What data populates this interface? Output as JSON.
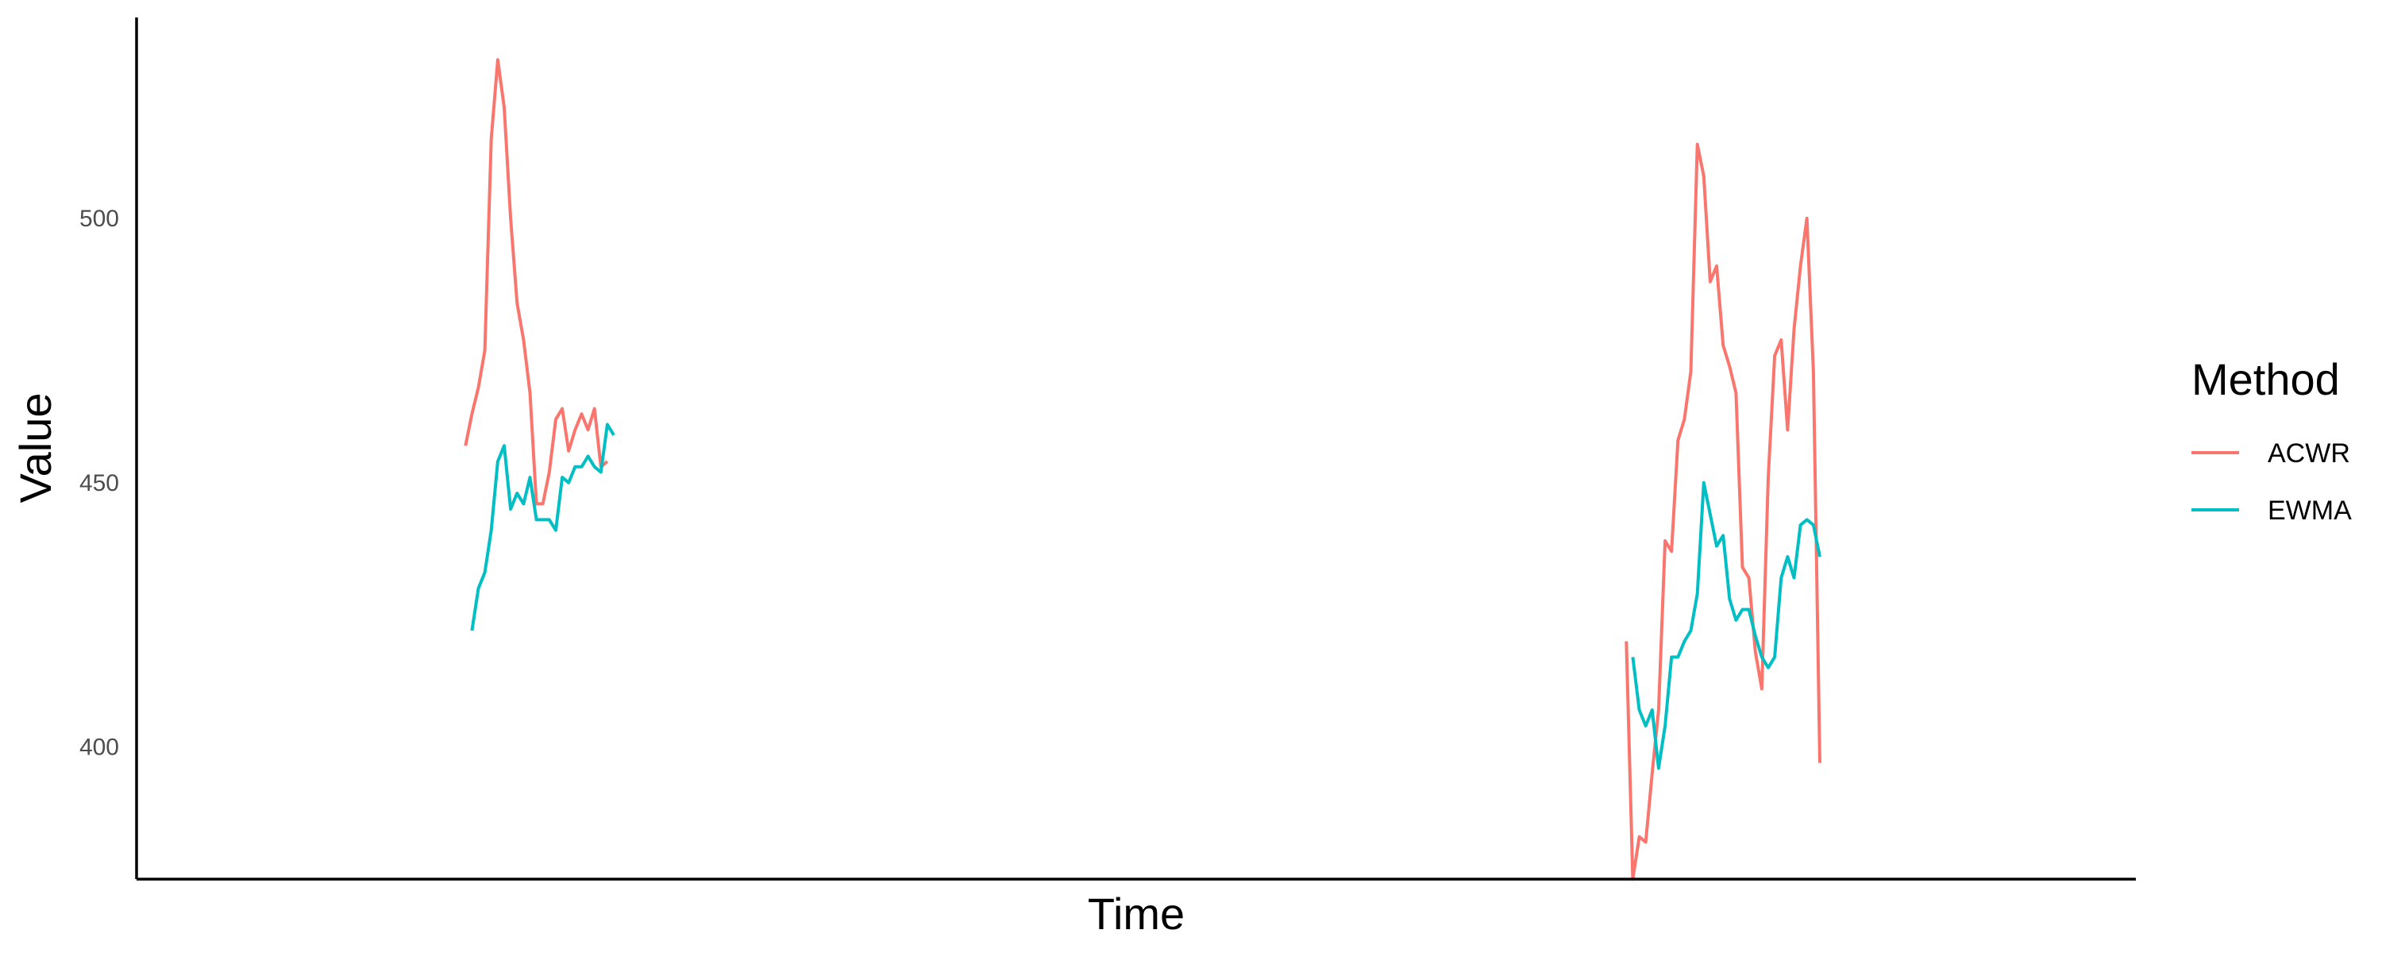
{
  "chart_data": {
    "type": "line",
    "title": "",
    "xlabel": "Time",
    "ylabel": "Value",
    "ylim": [
      375,
      538
    ],
    "yticks": [
      400,
      450,
      500
    ],
    "xticks_shown": false,
    "grid": false,
    "legend": {
      "title": "Method",
      "position": "right"
    },
    "series": [
      {
        "name": "ACWR",
        "color": "#F8766D",
        "segments": [
          {
            "x": [
              1,
              2,
              3,
              4,
              5,
              6,
              7,
              8,
              9,
              10,
              11,
              12,
              13,
              14,
              15,
              16,
              17,
              18,
              19,
              20,
              21,
              22,
              23,
              24,
              25
            ],
            "y": [
              457,
              463,
              468,
              475,
              515,
              530,
              521,
              500,
              484,
              477,
              467,
              446,
              446,
              452,
              462,
              464,
              456,
              460,
              463,
              460,
              464,
              453,
              454,
              null,
              null
            ]
          },
          {
            "x": [
              181,
              182,
              183,
              184,
              185,
              186,
              187,
              188,
              189,
              190,
              191,
              192,
              193,
              194,
              195,
              196,
              197,
              198,
              199,
              200,
              201,
              202,
              203,
              204,
              205,
              206,
              207,
              208,
              209,
              210,
              211,
              212,
              213,
              214,
              215,
              216,
              217,
              218,
              219,
              220,
              221,
              222,
              223,
              224,
              225,
              226,
              227,
              228,
              229,
              230
            ],
            "y": [
              420,
              375,
              383,
              382,
              395,
              407,
              439,
              437,
              458,
              462,
              471,
              514,
              508,
              488,
              491,
              476,
              472,
              467,
              434,
              432,
              418,
              411,
              451,
              474,
              477,
              460,
              479,
              491,
              500,
              471,
              397,
              null,
              null,
              null,
              null,
              null,
              null,
              null,
              null,
              null,
              null,
              null,
              null,
              null,
              null,
              null,
              null,
              null,
              null,
              null
            ]
          }
        ]
      },
      {
        "name": "EWMA",
        "color": "#00BFC4",
        "segments": [
          {
            "x": [
              2,
              3,
              4,
              5,
              6,
              7,
              8,
              9,
              10,
              11,
              12,
              13,
              14,
              15,
              16,
              17,
              18,
              19,
              20,
              21,
              22,
              23,
              24
            ],
            "y": [
              422,
              430,
              433,
              441,
              454,
              457,
              445,
              448,
              446,
              451,
              443,
              443,
              443,
              441,
              451,
              450,
              453,
              453,
              455,
              453,
              452,
              461,
              459
            ]
          },
          {
            "x": [
              182,
              183,
              184,
              185,
              186,
              187,
              188,
              189,
              190,
              191,
              192,
              193,
              194,
              195,
              196,
              197,
              198,
              199,
              200,
              201,
              202,
              203,
              204,
              205,
              206,
              207,
              208,
              209,
              210,
              211,
              212
            ],
            "y": [
              417,
              407,
              404,
              407,
              396,
              404,
              417,
              417,
              420,
              422,
              429,
              450,
              444,
              438,
              440,
              428,
              424,
              426,
              426,
              421,
              417,
              415,
              417,
              432,
              436,
              432,
              442,
              443,
              442,
              436,
              null
            ]
          }
        ]
      }
    ]
  }
}
